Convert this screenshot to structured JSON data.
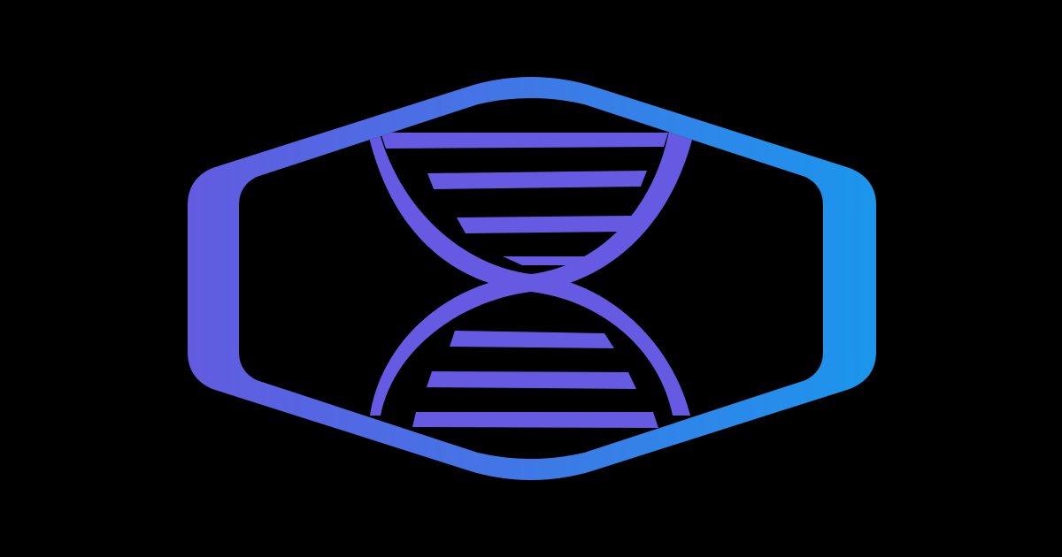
{
  "background_color": "#000000",
  "logo": {
    "icon": "dna-hexagon-logo-icon",
    "frame_gradient_start": "#625be0",
    "frame_gradient_end": "#1b96ec",
    "helix_color": "#655ae1"
  }
}
